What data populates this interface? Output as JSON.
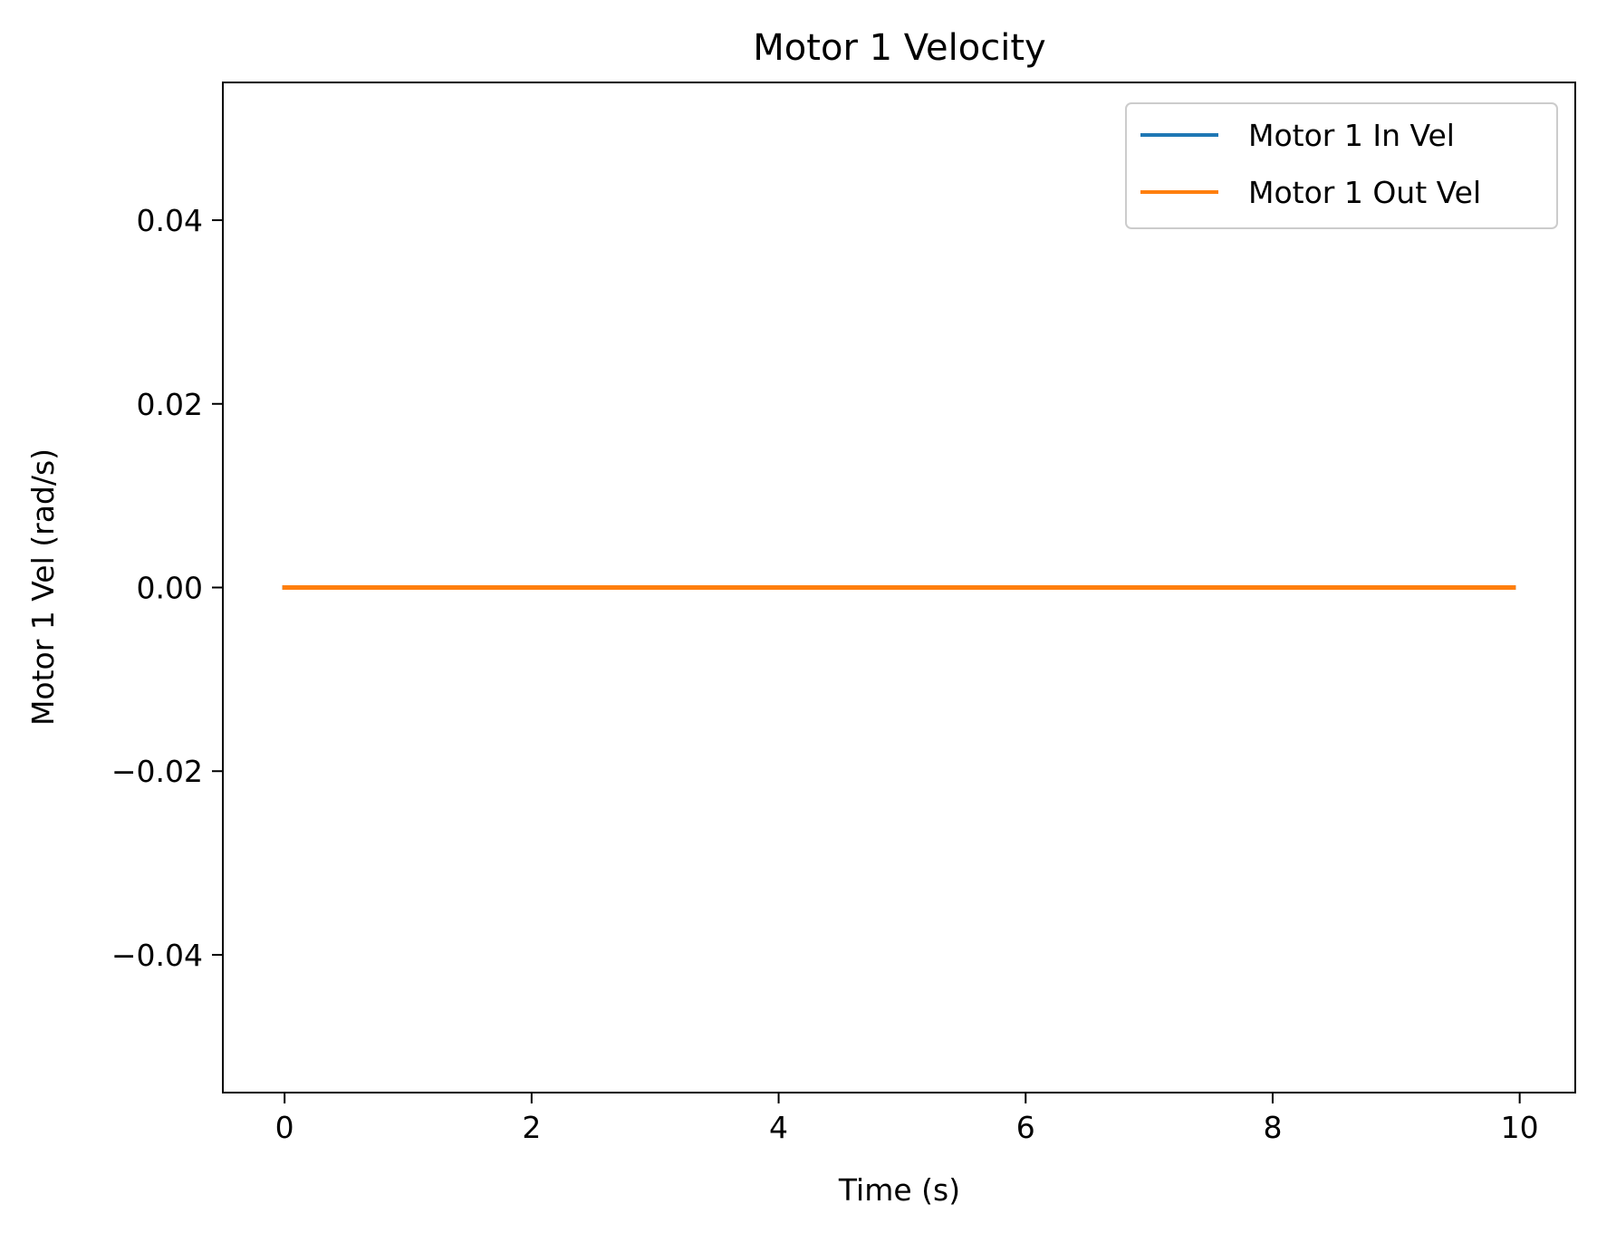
{
  "chart_data": {
    "type": "line",
    "title": "Motor 1 Velocity",
    "xlabel": "Time (s)",
    "ylabel": "Motor 1 Vel (rad/s)",
    "xlim": [
      -0.5,
      10.45
    ],
    "ylim": [
      -0.055,
      0.055
    ],
    "xticks": [
      0,
      2,
      4,
      6,
      8,
      10
    ],
    "xtick_labels": [
      "0",
      "2",
      "4",
      "6",
      "8",
      "10"
    ],
    "yticks": [
      0.04,
      0.02,
      0.0,
      -0.02,
      -0.04
    ],
    "ytick_labels": [
      "0.04",
      "0.02",
      "0.00",
      "−0.02",
      "−0.04"
    ],
    "grid": false,
    "legend_position": "top-right",
    "series": [
      {
        "name": "Motor 1 In Vel",
        "color": "#1f77b4",
        "x": [
          0,
          9.95
        ],
        "y": [
          0,
          0
        ]
      },
      {
        "name": "Motor 1 Out Vel",
        "color": "#ff7f0e",
        "x": [
          0,
          9.95
        ],
        "y": [
          0,
          0
        ]
      }
    ]
  }
}
